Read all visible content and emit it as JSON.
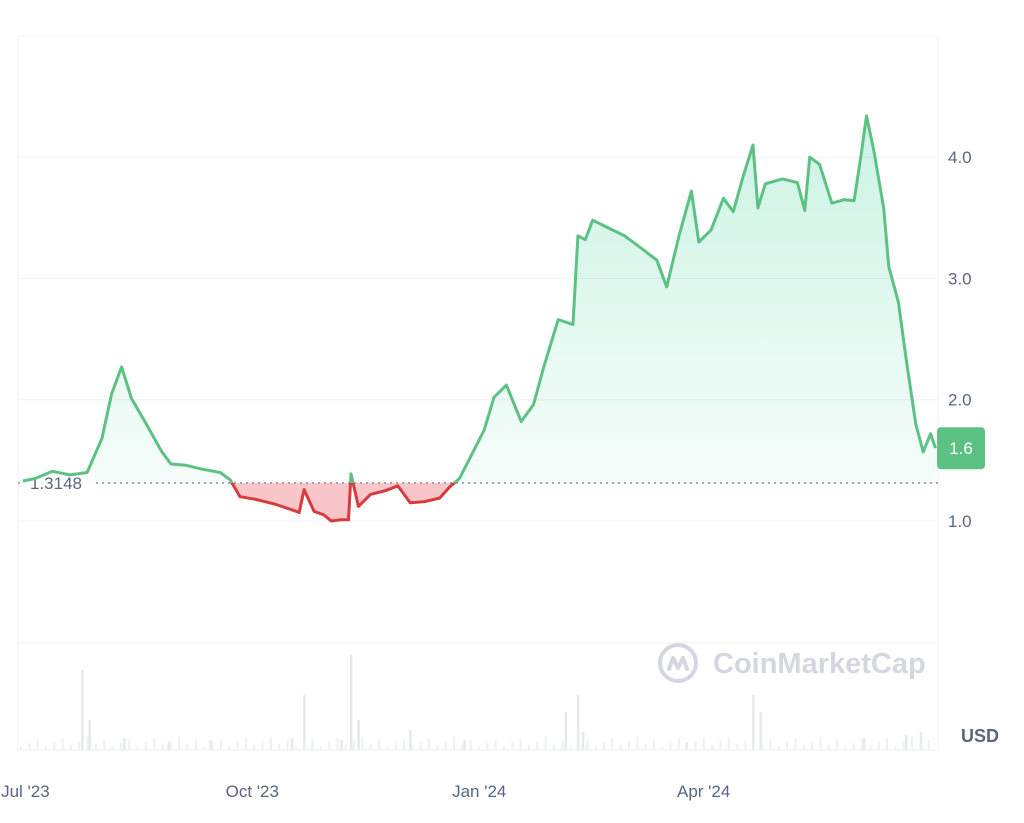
{
  "chart_data": {
    "type": "area",
    "x_type": "date",
    "y_unit": "USD",
    "reference_value": 1.3148,
    "reference_label": "1.3148",
    "current_value": 1.6,
    "current_label": "1.6",
    "ylim": [
      0,
      5
    ],
    "y_ticks": [
      {
        "value": 1.0,
        "label": "1.0"
      },
      {
        "value": 2.0,
        "label": "2.0"
      },
      {
        "value": 3.0,
        "label": "3.0"
      },
      {
        "value": 4.0,
        "label": "4.0"
      }
    ],
    "x_ticks": [
      {
        "date": "2023-07-01",
        "label": "Jul '23"
      },
      {
        "date": "2023-10-01",
        "label": "Oct '23"
      },
      {
        "date": "2024-01-01",
        "label": "Jan '24"
      },
      {
        "date": "2024-04-01",
        "label": "Apr '24"
      }
    ],
    "grid": true,
    "colors": {
      "up": "#16c784",
      "up_line": "#5cc283",
      "down": "#ea3943",
      "down_line": "#d83b3e",
      "grid": "#eff2f5",
      "volume": "#e6e8ee"
    },
    "series": [
      {
        "values": [
          [
            "2023-06-30",
            1.33
          ],
          [
            "2023-07-05",
            1.35
          ],
          [
            "2023-07-12",
            1.41
          ],
          [
            "2023-07-19",
            1.38
          ],
          [
            "2023-07-26",
            1.4
          ],
          [
            "2023-08-01",
            1.68
          ],
          [
            "2023-08-05",
            2.05
          ],
          [
            "2023-08-09",
            2.27
          ],
          [
            "2023-08-13",
            2.01
          ],
          [
            "2023-08-19",
            1.8
          ],
          [
            "2023-08-25",
            1.58
          ],
          [
            "2023-08-29",
            1.47
          ],
          [
            "2023-09-04",
            1.46
          ],
          [
            "2023-09-10",
            1.43
          ],
          [
            "2023-09-18",
            1.4
          ],
          [
            "2023-09-22",
            1.34
          ],
          [
            "2023-09-26",
            1.2
          ],
          [
            "2023-10-02",
            1.18
          ],
          [
            "2023-10-10",
            1.14
          ],
          [
            "2023-10-16",
            1.1
          ],
          [
            "2023-10-20",
            1.07
          ],
          [
            "2023-10-22",
            1.26
          ],
          [
            "2023-10-26",
            1.08
          ],
          [
            "2023-10-30",
            1.05
          ],
          [
            "2023-11-02",
            1.0
          ],
          [
            "2023-11-06",
            1.01
          ],
          [
            "2023-11-09",
            1.01
          ],
          [
            "2023-11-10",
            1.39
          ],
          [
            "2023-11-13",
            1.12
          ],
          [
            "2023-11-18",
            1.22
          ],
          [
            "2023-11-24",
            1.25
          ],
          [
            "2023-11-29",
            1.29
          ],
          [
            "2023-12-04",
            1.15
          ],
          [
            "2023-12-10",
            1.16
          ],
          [
            "2023-12-16",
            1.19
          ],
          [
            "2023-12-20",
            1.28
          ],
          [
            "2023-12-24",
            1.35
          ],
          [
            "2023-12-29",
            1.55
          ],
          [
            "2024-01-03",
            1.75
          ],
          [
            "2024-01-07",
            2.02
          ],
          [
            "2024-01-12",
            2.12
          ],
          [
            "2024-01-18",
            1.82
          ],
          [
            "2024-01-23",
            1.96
          ],
          [
            "2024-01-27",
            2.26
          ],
          [
            "2024-02-02",
            2.66
          ],
          [
            "2024-02-08",
            2.62
          ],
          [
            "2024-02-10",
            3.35
          ],
          [
            "2024-02-13",
            3.32
          ],
          [
            "2024-02-16",
            3.48
          ],
          [
            "2024-02-22",
            3.42
          ],
          [
            "2024-02-29",
            3.35
          ],
          [
            "2024-03-06",
            3.26
          ],
          [
            "2024-03-13",
            3.15
          ],
          [
            "2024-03-17",
            2.93
          ],
          [
            "2024-03-22",
            3.35
          ],
          [
            "2024-03-27",
            3.72
          ],
          [
            "2024-03-30",
            3.3
          ],
          [
            "2024-04-04",
            3.4
          ],
          [
            "2024-04-09",
            3.66
          ],
          [
            "2024-04-13",
            3.55
          ],
          [
            "2024-04-17",
            3.84
          ],
          [
            "2024-04-21",
            4.1
          ],
          [
            "2024-04-23",
            3.58
          ],
          [
            "2024-04-26",
            3.78
          ],
          [
            "2024-05-03",
            3.82
          ],
          [
            "2024-05-09",
            3.79
          ],
          [
            "2024-05-12",
            3.56
          ],
          [
            "2024-05-14",
            4.0
          ],
          [
            "2024-05-18",
            3.94
          ],
          [
            "2024-05-23",
            3.62
          ],
          [
            "2024-05-28",
            3.65
          ],
          [
            "2024-06-01",
            3.64
          ],
          [
            "2024-06-04",
            4.04
          ],
          [
            "2024-06-06",
            4.34
          ],
          [
            "2024-06-09",
            4.05
          ],
          [
            "2024-06-13",
            3.58
          ],
          [
            "2024-06-15",
            3.1
          ],
          [
            "2024-06-19",
            2.8
          ],
          [
            "2024-06-22",
            2.35
          ],
          [
            "2024-06-26",
            1.8
          ],
          [
            "2024-06-29",
            1.57
          ],
          [
            "2024-07-02",
            1.72
          ],
          [
            "2024-07-04",
            1.6
          ]
        ]
      }
    ],
    "volume_spikes": [
      [
        "2023-07-24",
        0.8
      ],
      [
        "2023-07-27",
        0.3
      ],
      [
        "2023-08-10",
        0.12
      ],
      [
        "2023-08-28",
        0.08
      ],
      [
        "2023-09-14",
        0.1
      ],
      [
        "2023-10-17",
        0.12
      ],
      [
        "2023-10-22",
        0.55
      ],
      [
        "2023-11-06",
        0.1
      ],
      [
        "2023-11-10",
        0.95
      ],
      [
        "2023-11-13",
        0.3
      ],
      [
        "2023-12-04",
        0.2
      ],
      [
        "2023-12-26",
        0.1
      ],
      [
        "2024-02-05",
        0.38
      ],
      [
        "2024-02-10",
        0.55
      ],
      [
        "2024-02-12",
        0.18
      ],
      [
        "2024-03-25",
        0.08
      ],
      [
        "2024-04-21",
        0.55
      ],
      [
        "2024-04-24",
        0.38
      ],
      [
        "2024-06-05",
        0.12
      ],
      [
        "2024-06-22",
        0.15
      ],
      [
        "2024-06-28",
        0.18
      ]
    ]
  },
  "branding": {
    "watermark_text": "CoinMarketCap",
    "watermark_icon": "coinmarketcap-logo-icon"
  }
}
